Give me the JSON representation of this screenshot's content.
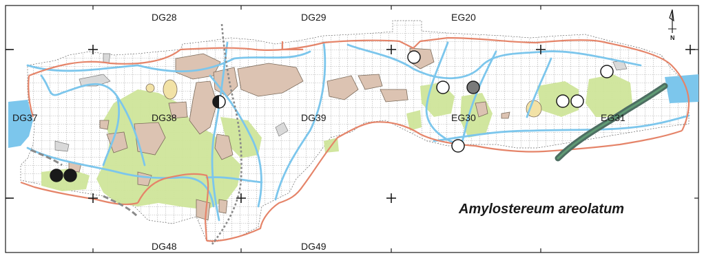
{
  "map": {
    "species_name": "Amylostereum areolatum",
    "north_label": "N",
    "grid_labels": {
      "dg28": "DG28",
      "dg29": "DG29",
      "eg20": "EG20",
      "dg37": "DG37",
      "dg38": "DG38",
      "dg39": "DG39",
      "eg30": "EG30",
      "eg31": "EG31",
      "dg48": "DG48",
      "dg49": "DG49"
    },
    "legend_colors": {
      "river": "#7cc6ec",
      "boundary": "#e58469",
      "forest": "#cfe59a",
      "urban": "#dcc3b2",
      "lake": "#7cc6ec",
      "record_filled": "#1a1a1a",
      "record_open": "#ffffff",
      "record_grey": "#7a7a7a"
    },
    "record_types": [
      "filled",
      "filled",
      "half",
      "open",
      "open",
      "grey",
      "open",
      "open",
      "open",
      "open"
    ]
  }
}
